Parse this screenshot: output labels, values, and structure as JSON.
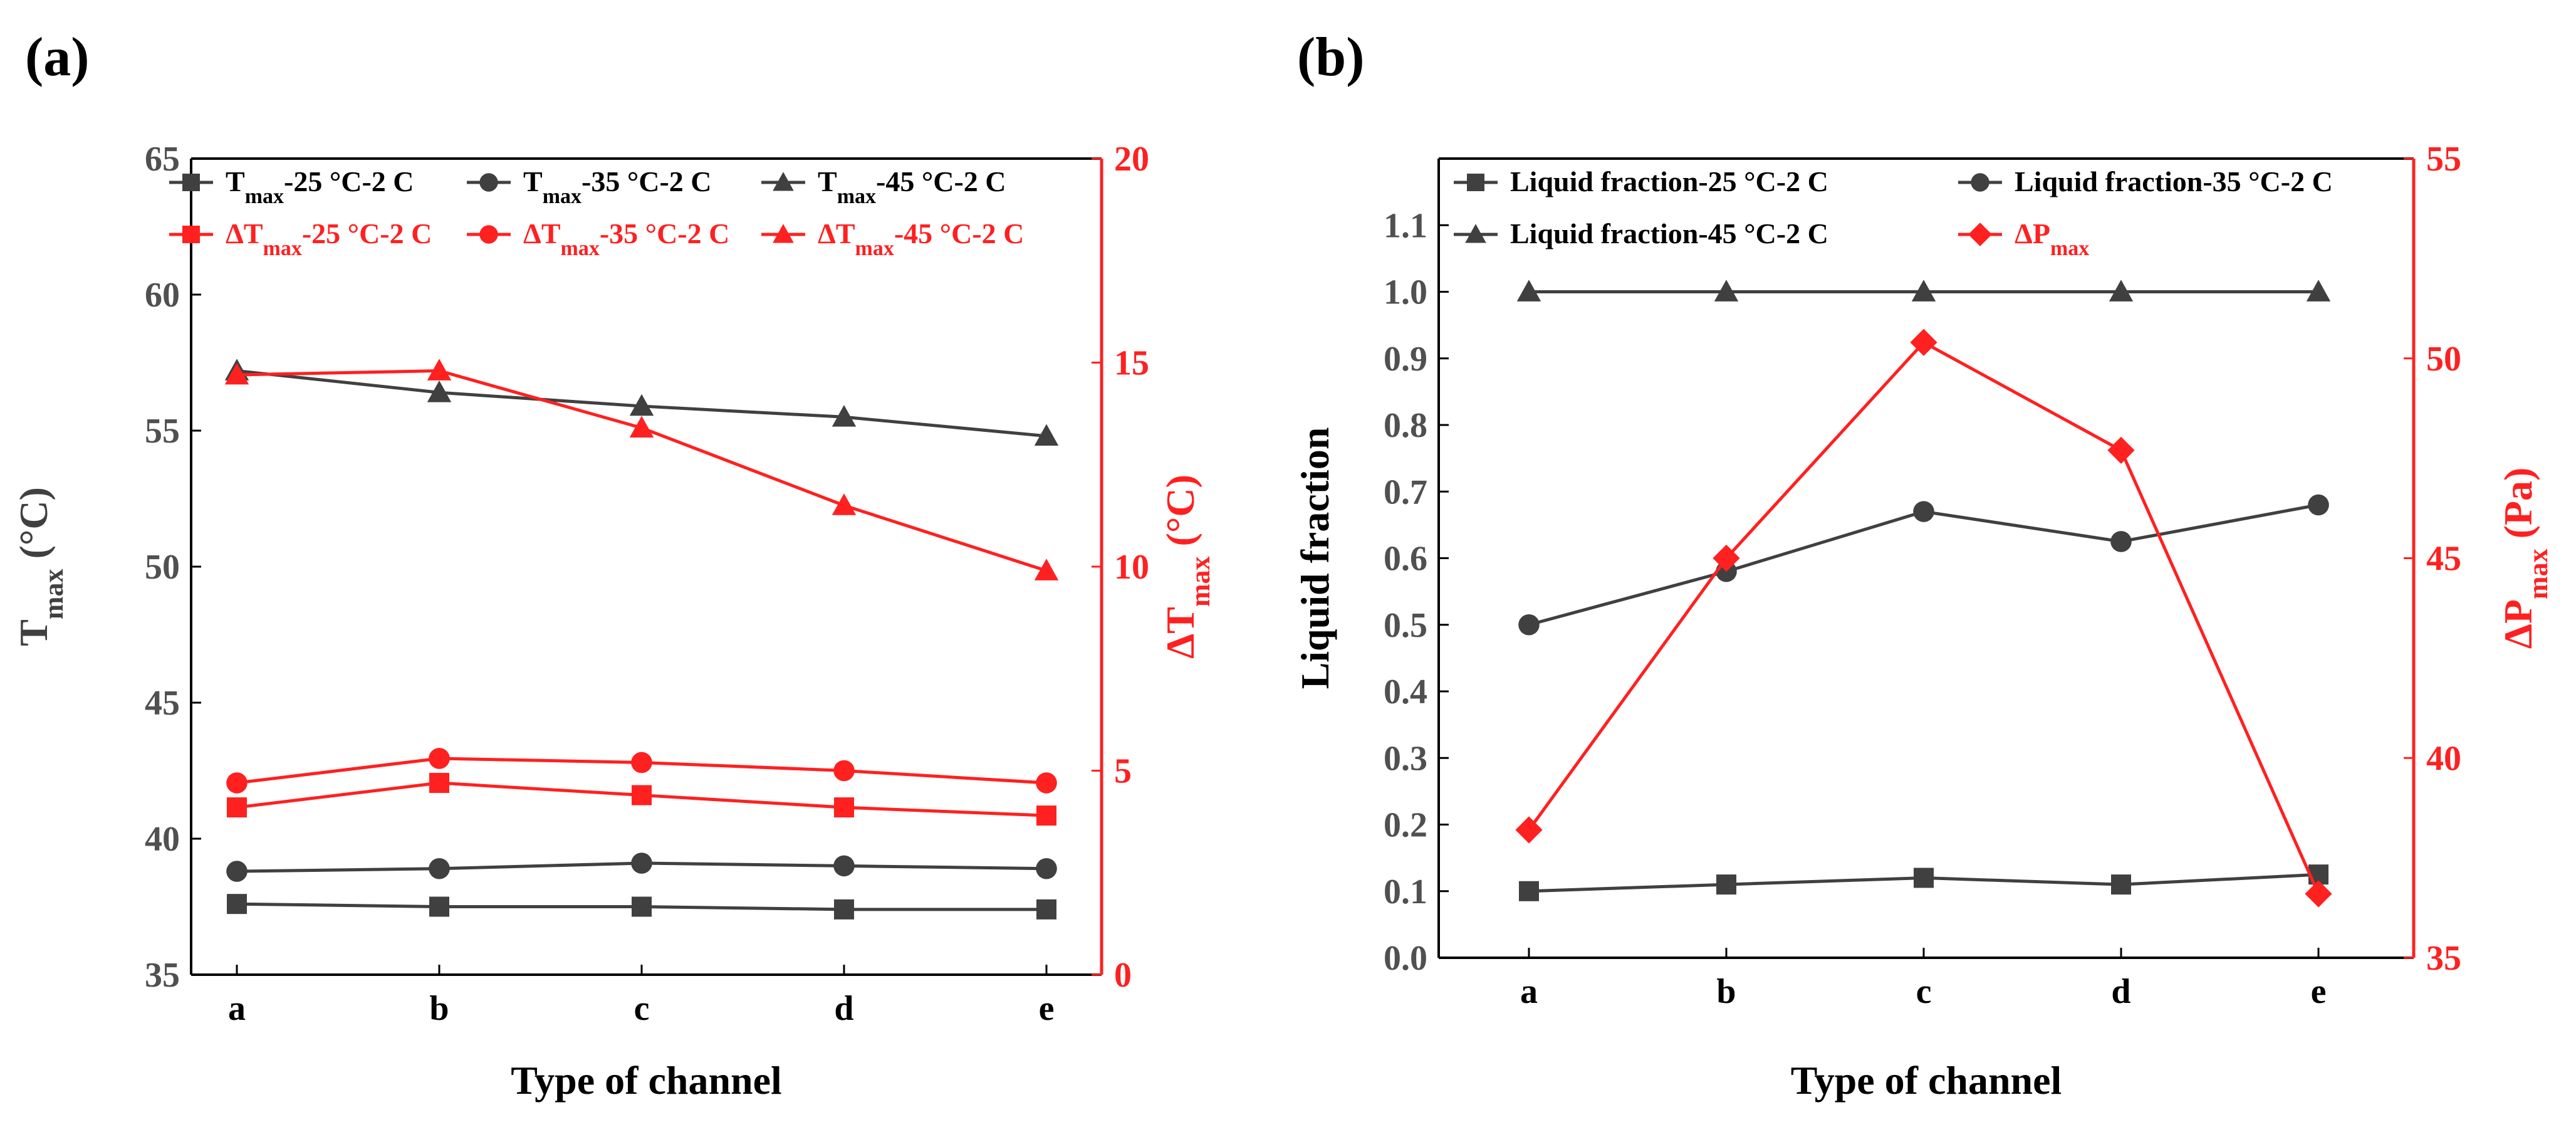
{
  "chart_data": [
    {
      "panel_label": "(a)",
      "type": "line",
      "xlabel": "Type of channel",
      "categories": [
        "a",
        "b",
        "c",
        "d",
        "e"
      ],
      "y_left": {
        "ylim": [
          35,
          65
        ],
        "ticks": [
          "35",
          "40",
          "45",
          "50",
          "55",
          "60",
          "65"
        ],
        "label_main": "T",
        "label_sub": "max",
        "label_tail": " (°C)"
      },
      "y_right": {
        "ylim": [
          0,
          20
        ],
        "ticks": [
          "0",
          "5",
          "10",
          "15",
          "20"
        ],
        "label_main": "ΔT",
        "label_sub": "max",
        "label_tail": " (°C)"
      },
      "grid": false,
      "legend_position": "top",
      "series": [
        {
          "legend_main": "T",
          "legend_sub": "max",
          "legend_tail": "-25 °C-2 C",
          "axis": "left",
          "marker": "square",
          "color": "#404040",
          "values": [
            37.6,
            37.5,
            37.5,
            37.4,
            37.4
          ]
        },
        {
          "legend_main": "T",
          "legend_sub": "max",
          "legend_tail": "-35 °C-2 C",
          "axis": "left",
          "marker": "circle",
          "color": "#404040",
          "values": [
            38.8,
            38.9,
            39.1,
            39.0,
            38.9
          ]
        },
        {
          "legend_main": "T",
          "legend_sub": "max",
          "legend_tail": "-45 °C-2 C",
          "axis": "left",
          "marker": "triangle",
          "color": "#404040",
          "values": [
            57.2,
            56.4,
            55.9,
            55.5,
            54.8
          ]
        },
        {
          "legend_main": "ΔT",
          "legend_sub": "max",
          "legend_tail": "-25 °C-2 C",
          "axis": "right",
          "marker": "square",
          "color": "#ff2020",
          "values": [
            4.1,
            4.7,
            4.4,
            4.1,
            3.9
          ]
        },
        {
          "legend_main": "ΔT",
          "legend_sub": "max",
          "legend_tail": "-35 °C-2 C",
          "axis": "right",
          "marker": "circle",
          "color": "#ff2020",
          "values": [
            4.7,
            5.3,
            5.2,
            5.0,
            4.7
          ]
        },
        {
          "legend_main": "ΔT",
          "legend_sub": "max",
          "legend_tail": "-45 °C-2 C",
          "axis": "right",
          "marker": "triangle",
          "color": "#ff2020",
          "values": [
            14.7,
            14.8,
            13.4,
            11.5,
            9.9
          ]
        }
      ]
    },
    {
      "panel_label": "(b)",
      "type": "line",
      "xlabel": "Type of channel",
      "categories": [
        "a",
        "b",
        "c",
        "d",
        "e"
      ],
      "y_left": {
        "ylim": [
          0,
          1.2
        ],
        "ticks": [
          "0.0",
          "0.1",
          "0.2",
          "0.3",
          "0.4",
          "0.5",
          "0.6",
          "0.7",
          "0.8",
          "0.9",
          "1.0",
          "1.1"
        ],
        "label_main": "Liquid fraction",
        "label_sub": "",
        "label_tail": ""
      },
      "y_right": {
        "ylim": [
          35,
          55
        ],
        "ticks": [
          "35",
          "40",
          "45",
          "50",
          "55"
        ],
        "label_main": "ΔP",
        "label_sub": "max",
        "label_tail": " (Pa)"
      },
      "grid": false,
      "legend_position": "top",
      "series": [
        {
          "legend_main": "Liquid fraction-25 °C-2 C",
          "legend_sub": "",
          "legend_tail": "",
          "axis": "left",
          "marker": "square",
          "color": "#404040",
          "values": [
            0.1,
            0.11,
            0.12,
            0.11,
            0.125
          ]
        },
        {
          "legend_main": "Liquid fraction-35 °C-2 C",
          "legend_sub": "",
          "legend_tail": "",
          "axis": "left",
          "marker": "circle",
          "color": "#404040",
          "values": [
            0.5,
            0.58,
            0.67,
            0.625,
            0.68
          ]
        },
        {
          "legend_main": "Liquid fraction-45 °C-2 C",
          "legend_sub": "",
          "legend_tail": "",
          "axis": "left",
          "marker": "triangle",
          "color": "#404040",
          "values": [
            1.0,
            1.0,
            1.0,
            1.0,
            1.0
          ]
        },
        {
          "legend_main": "ΔP",
          "legend_sub": "max",
          "legend_tail": "",
          "axis": "right",
          "marker": "diamond",
          "color": "#ff2020",
          "values": [
            38.2,
            45.0,
            50.4,
            47.7,
            36.6
          ]
        }
      ]
    }
  ]
}
